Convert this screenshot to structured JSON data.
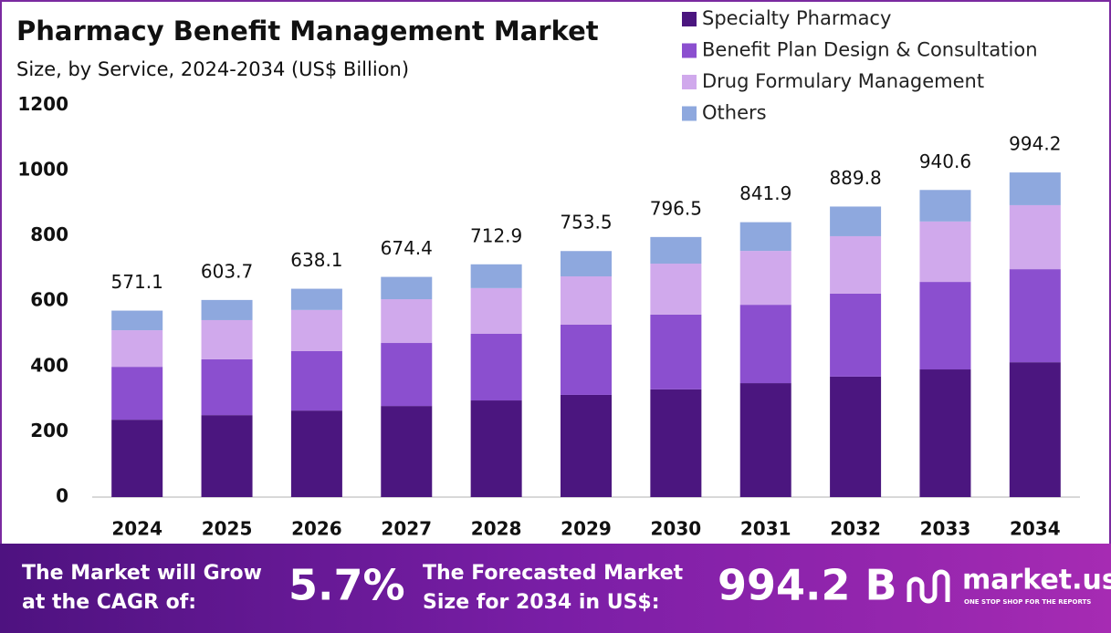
{
  "chart_data": {
    "type": "stacked_bar",
    "title": "Pharmacy Benefit Management Market",
    "subtitle": "Size, by Service, 2024-2034 (US$ Billion)",
    "categories": [
      "2024",
      "2025",
      "2026",
      "2027",
      "2028",
      "2029",
      "2030",
      "2031",
      "2032",
      "2033",
      "2034"
    ],
    "series": [
      {
        "name": "Specialty Pharmacy",
        "color": "#4b167f",
        "values": [
          237,
          251,
          265,
          279,
          296,
          313,
          330,
          349,
          369,
          391,
          413
        ]
      },
      {
        "name": "Benefit Plan Design & Consultation",
        "color": "#8b4fcf",
        "values": [
          162,
          171,
          182,
          193,
          204,
          215,
          229,
          240,
          254,
          268,
          285
        ]
      },
      {
        "name": "Drug Formulary Management",
        "color": "#d0a9ec",
        "values": [
          112,
          120,
          126,
          134,
          140,
          148,
          156,
          165,
          176,
          185,
          196
        ]
      },
      {
        "name": "Others",
        "color": "#8ea8de",
        "values": [
          60.1,
          61.7,
          65.1,
          68.4,
          72.9,
          77.5,
          81.5,
          87.9,
          90.8,
          96.6,
          100.2
        ]
      }
    ],
    "totals": [
      571.1,
      603.7,
      638.1,
      674.4,
      712.9,
      753.5,
      796.5,
      841.9,
      889.8,
      940.6,
      994.2
    ],
    "ylim": [
      0,
      1200
    ],
    "yticks": [
      0,
      200,
      400,
      600,
      800,
      1000,
      1200
    ],
    "grid": false,
    "legend": "top-right"
  },
  "footer": {
    "cagr_text": [
      "The Market will Grow",
      "at the CAGR of:"
    ],
    "cagr_value": "5.7%",
    "forecast_text": [
      "The Forecasted Market",
      "Size for 2034 in US$:"
    ],
    "forecast_value": "994.2 B",
    "brand": "market.us",
    "tagline": "ONE STOP SHOP FOR THE REPORTS"
  }
}
